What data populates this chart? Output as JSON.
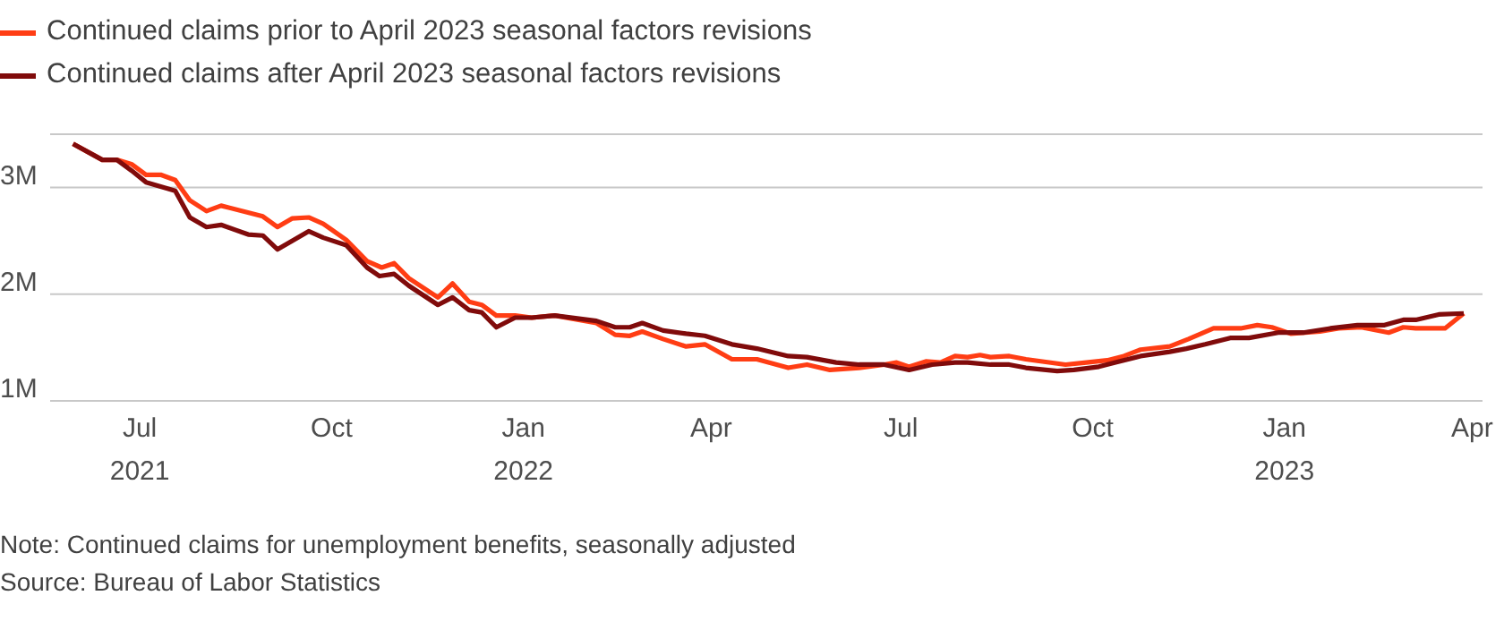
{
  "chart_data": {
    "type": "line",
    "legend": "top left",
    "grid": "y",
    "line_style": "solid",
    "marker": "none",
    "xlim": [
      "2021-05-19",
      "2023-04-06"
    ],
    "xticks": [
      {
        "value": "2021-07-01",
        "label": "Jul 2021"
      },
      {
        "value": "2021-10-01",
        "label": "Oct"
      },
      {
        "value": "2022-01-01",
        "label": "Jan 2022"
      },
      {
        "value": "2022-04-01",
        "label": "Apr"
      },
      {
        "value": "2022-07-01",
        "label": "Jul"
      },
      {
        "value": "2022-10-01",
        "label": "Oct"
      },
      {
        "value": "2023-01-01",
        "label": "Jan 2023"
      },
      {
        "value": "2023-04-01",
        "label": "Apr"
      }
    ],
    "ylim": [
      1,
      3.5
    ],
    "yticks": [
      {
        "value": 1,
        "label": "1M"
      },
      {
        "value": 2,
        "label": "2M"
      },
      {
        "value": 3,
        "label": "3M"
      }
    ],
    "series": [
      {
        "name": "Continued claims prior to April 2023 seasonal factors revisions",
        "color": "#ff3d14",
        "x": [
          "2021-05-30",
          "2021-06-13",
          "2021-06-20",
          "2021-06-27",
          "2021-07-04",
          "2021-07-11",
          "2021-07-18",
          "2021-07-25",
          "2021-08-02",
          "2021-08-09",
          "2021-08-29",
          "2021-09-05",
          "2021-09-12",
          "2021-09-20",
          "2021-09-27",
          "2021-10-08",
          "2021-10-18",
          "2021-10-25",
          "2021-10-31",
          "2021-11-07",
          "2021-11-21",
          "2021-11-28",
          "2021-12-06",
          "2021-12-12",
          "2021-12-19",
          "2021-12-28",
          "2022-01-05",
          "2022-01-16",
          "2022-02-05",
          "2022-02-14",
          "2022-02-21",
          "2022-02-27",
          "2022-03-09",
          "2022-03-20",
          "2022-03-29",
          "2022-04-11",
          "2022-04-23",
          "2022-05-08",
          "2022-05-17",
          "2022-05-28",
          "2022-06-11",
          "2022-06-23",
          "2022-06-29",
          "2022-07-05",
          "2022-07-13",
          "2022-07-20",
          "2022-07-27",
          "2022-08-02",
          "2022-08-08",
          "2022-08-13",
          "2022-08-22",
          "2022-08-30",
          "2022-09-18",
          "2022-09-28",
          "2022-10-08",
          "2022-10-16",
          "2022-10-24",
          "2022-11-07",
          "2022-11-16",
          "2022-11-28",
          "2022-12-11",
          "2022-12-19",
          "2022-12-26",
          "2023-01-04",
          "2023-01-18",
          "2023-01-27",
          "2023-02-07",
          "2023-02-20",
          "2023-02-27",
          "2023-03-05",
          "2023-03-19",
          "2023-03-28"
        ],
        "values": [
          3.41,
          3.26,
          3.26,
          3.22,
          3.12,
          3.12,
          3.07,
          2.88,
          2.78,
          2.83,
          2.73,
          2.63,
          2.71,
          2.72,
          2.66,
          2.51,
          2.31,
          2.25,
          2.29,
          2.15,
          1.97,
          2.1,
          1.93,
          1.9,
          1.8,
          1.8,
          1.78,
          1.8,
          1.73,
          1.62,
          1.61,
          1.65,
          1.58,
          1.51,
          1.53,
          1.39,
          1.39,
          1.31,
          1.34,
          1.29,
          1.31,
          1.34,
          1.36,
          1.32,
          1.37,
          1.36,
          1.42,
          1.41,
          1.43,
          1.41,
          1.42,
          1.39,
          1.34,
          1.36,
          1.38,
          1.42,
          1.48,
          1.51,
          1.58,
          1.68,
          1.68,
          1.71,
          1.69,
          1.63,
          1.65,
          1.68,
          1.69,
          1.64,
          1.69,
          1.68,
          1.68,
          1.82
        ]
      },
      {
        "name": "Continued claims after April 2023 seasonal factors revisions",
        "color": "#800b0b",
        "x": [
          "2021-05-30",
          "2021-06-13",
          "2021-06-20",
          "2021-06-27",
          "2021-07-04",
          "2021-07-18",
          "2021-07-25",
          "2021-08-02",
          "2021-08-09",
          "2021-08-22",
          "2021-08-29",
          "2021-09-05",
          "2021-09-20",
          "2021-09-27",
          "2021-10-08",
          "2021-10-18",
          "2021-10-24",
          "2021-10-31",
          "2021-11-07",
          "2021-11-21",
          "2021-11-28",
          "2021-12-06",
          "2021-12-12",
          "2021-12-19",
          "2021-12-28",
          "2022-01-05",
          "2022-01-16",
          "2022-02-05",
          "2022-02-14",
          "2022-02-21",
          "2022-02-27",
          "2022-03-09",
          "2022-03-20",
          "2022-03-29",
          "2022-04-11",
          "2022-04-23",
          "2022-05-08",
          "2022-05-17",
          "2022-05-31",
          "2022-06-11",
          "2022-06-23",
          "2022-07-05",
          "2022-07-16",
          "2022-07-27",
          "2022-08-02",
          "2022-08-13",
          "2022-08-22",
          "2022-08-30",
          "2022-09-14",
          "2022-09-22",
          "2022-10-04",
          "2022-10-12",
          "2022-10-24",
          "2022-11-07",
          "2022-11-15",
          "2022-11-24",
          "2022-12-06",
          "2022-12-15",
          "2022-12-29",
          "2023-01-10",
          "2023-01-23",
          "2023-02-05",
          "2023-02-18",
          "2023-02-27",
          "2023-03-05",
          "2023-03-16",
          "2023-03-28"
        ],
        "values": [
          3.41,
          3.26,
          3.26,
          3.16,
          3.05,
          2.97,
          2.72,
          2.63,
          2.65,
          2.56,
          2.55,
          2.42,
          2.59,
          2.53,
          2.46,
          2.25,
          2.17,
          2.19,
          2.08,
          1.9,
          1.97,
          1.85,
          1.83,
          1.69,
          1.78,
          1.78,
          1.8,
          1.75,
          1.69,
          1.69,
          1.73,
          1.66,
          1.63,
          1.61,
          1.53,
          1.49,
          1.42,
          1.41,
          1.36,
          1.34,
          1.34,
          1.29,
          1.34,
          1.36,
          1.36,
          1.34,
          1.34,
          1.31,
          1.28,
          1.29,
          1.32,
          1.36,
          1.42,
          1.46,
          1.49,
          1.53,
          1.59,
          1.59,
          1.64,
          1.64,
          1.68,
          1.71,
          1.71,
          1.76,
          1.76,
          1.81,
          1.82
        ]
      }
    ],
    "annotations": [
      "Note: Continued claims for unemployment benefits, seasonally adjusted",
      "Source: Bureau of Labor Statistics"
    ]
  }
}
